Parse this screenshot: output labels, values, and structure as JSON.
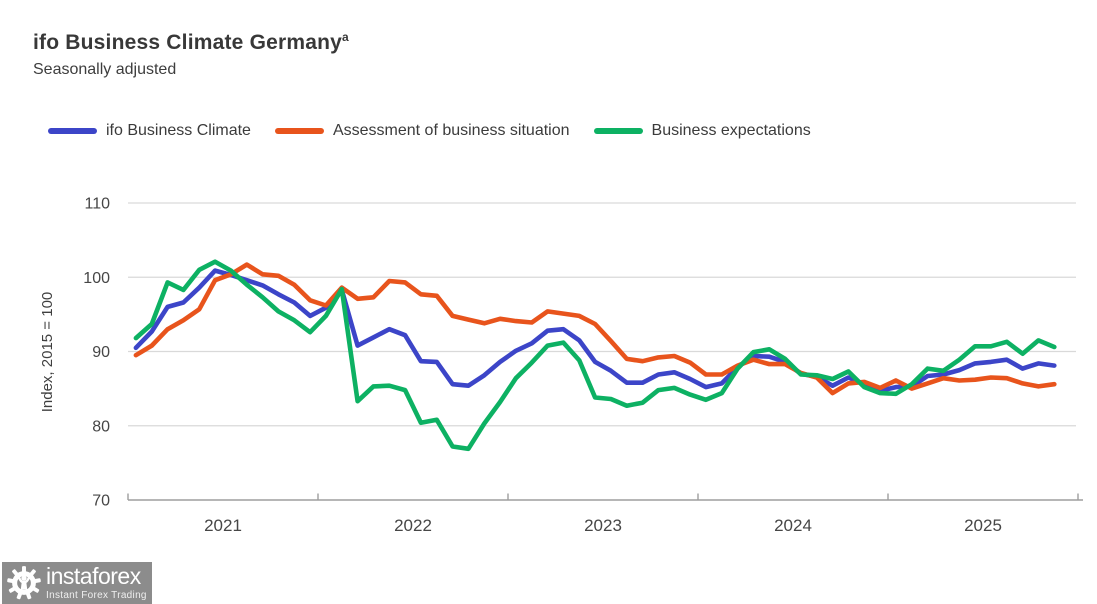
{
  "header": {
    "title": "ifo Business Climate Germany",
    "title_note": "a",
    "subtitle": "Seasonally adjusted"
  },
  "legend": {
    "items": [
      {
        "label": "ifo Business Climate",
        "color": "#3c45c8"
      },
      {
        "label": "Assessment of business situation",
        "color": "#e8541c"
      },
      {
        "label": "Business expectations",
        "color": "#0db163"
      }
    ]
  },
  "chart_data": {
    "type": "line",
    "title": "ifo Business Climate Germany",
    "subtitle": "Seasonally adjusted",
    "ylabel": "Index, 2015 = 100",
    "y_ticks": [
      70,
      80,
      90,
      100,
      110
    ],
    "ylim": [
      70,
      110
    ],
    "x_year_labels": [
      "2021",
      "2022",
      "2023",
      "2024",
      "2025"
    ],
    "x_frequency": "monthly",
    "x_start_month": "2021-01",
    "x_end_month": "2025-11",
    "grid": "horizontal",
    "legend_position": "top",
    "series": [
      {
        "name": "ifo Business Climate",
        "color": "#3c45c8",
        "values": [
          90.5,
          92.7,
          96.0,
          96.6,
          98.6,
          100.9,
          100.3,
          99.6,
          98.9,
          97.7,
          96.6,
          94.8,
          95.9,
          98.3,
          90.8,
          91.9,
          93.0,
          92.2,
          88.7,
          88.6,
          85.6,
          85.4,
          86.8,
          88.6,
          90.1,
          91.1,
          92.8,
          93.0,
          91.5,
          88.6,
          87.4,
          85.8,
          85.8,
          86.9,
          87.2,
          86.3,
          85.2,
          85.7,
          87.9,
          89.4,
          89.3,
          88.6,
          87.0,
          86.6,
          85.4,
          86.5,
          85.6,
          84.7,
          85.2,
          85.3,
          86.7,
          86.9,
          87.5,
          88.4,
          88.6,
          88.9,
          87.7,
          88.4,
          88.1
        ]
      },
      {
        "name": "Assessment of business situation",
        "color": "#e8541c",
        "values": [
          89.5,
          90.8,
          93.0,
          94.2,
          95.7,
          99.6,
          100.4,
          101.7,
          100.4,
          100.2,
          99.0,
          96.9,
          96.2,
          98.6,
          97.1,
          97.3,
          99.5,
          99.3,
          97.7,
          97.5,
          94.8,
          94.3,
          93.8,
          94.4,
          94.1,
          93.9,
          95.4,
          95.1,
          94.8,
          93.7,
          91.4,
          89.0,
          88.7,
          89.2,
          89.4,
          88.5,
          86.9,
          86.9,
          88.1,
          88.9,
          88.3,
          88.3,
          87.1,
          86.5,
          84.4,
          85.7,
          85.9,
          85.1,
          86.1,
          85.0,
          85.7,
          86.4,
          86.1,
          86.2,
          86.5,
          86.4,
          85.7,
          85.3,
          85.6
        ]
      },
      {
        "name": "Business expectations",
        "color": "#0db163",
        "values": [
          91.8,
          93.7,
          99.3,
          98.3,
          101.0,
          102.1,
          100.9,
          99.0,
          97.3,
          95.4,
          94.2,
          92.6,
          94.8,
          98.4,
          83.3,
          85.3,
          85.4,
          84.8,
          80.4,
          80.8,
          77.2,
          76.9,
          80.3,
          83.2,
          86.4,
          88.5,
          90.8,
          91.2,
          88.8,
          83.8,
          83.6,
          82.7,
          83.1,
          84.8,
          85.1,
          84.2,
          83.5,
          84.4,
          87.7,
          89.9,
          90.3,
          89.0,
          86.9,
          86.8,
          86.3,
          87.3,
          85.2,
          84.4,
          84.3,
          85.6,
          87.7,
          87.4,
          88.9,
          90.7,
          90.7,
          91.3,
          89.7,
          91.5,
          90.6
        ]
      }
    ]
  },
  "watermark": {
    "brand": "instaforex",
    "tagline": "Instant Forex Trading"
  }
}
